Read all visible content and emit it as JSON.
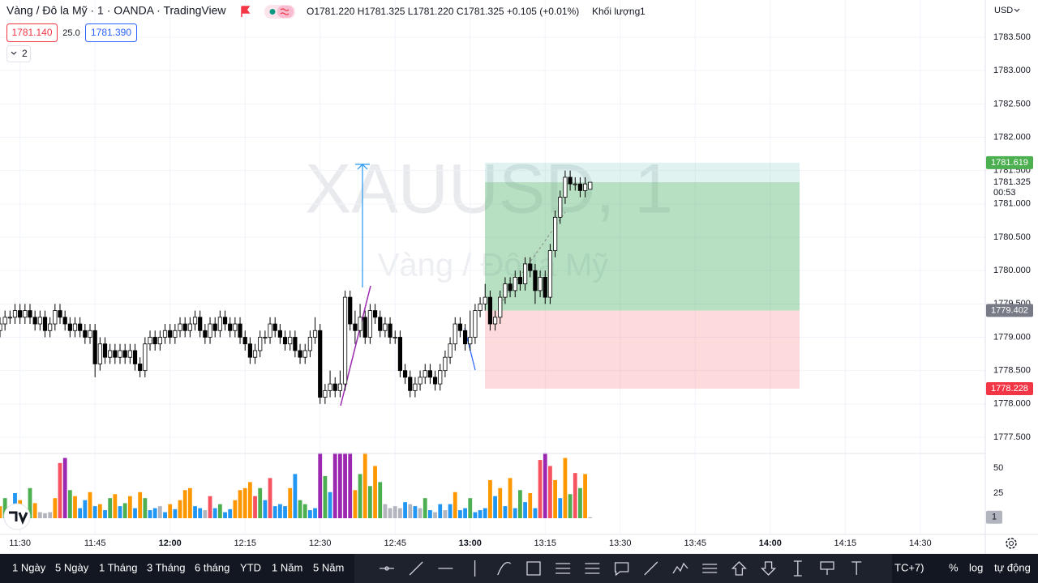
{
  "header": {
    "title": "Vàng / Đô la Mỹ · 1 · OANDA · TradingView",
    "ohlc_text": "O1781.220 H1781.325 L1781.220 C1781.325 +0.105 (+0.01%)",
    "volume_label": "Khối lượng",
    "sell": "1781.140",
    "spread": "25.0",
    "buy": "1781.390",
    "indicators": "2",
    "currency": "USD"
  },
  "chart_data": {
    "type": "candlestick",
    "watermark": "XAUUSD, 1",
    "watermark_sub": "Vàng / Đô la Mỹ",
    "x": [
      "11:26",
      "11:27",
      "11:28",
      "11:29",
      "11:30",
      "11:31",
      "11:32",
      "11:33",
      "11:34",
      "11:35",
      "11:36",
      "11:37",
      "11:38",
      "11:39",
      "11:40",
      "11:41",
      "11:42",
      "11:43",
      "11:44",
      "11:45",
      "11:46",
      "11:47",
      "11:48",
      "11:49",
      "11:50",
      "11:51",
      "11:52",
      "11:53",
      "11:54",
      "11:55",
      "11:56",
      "11:57",
      "11:58",
      "11:59",
      "12:00",
      "12:01",
      "12:02",
      "12:03",
      "12:04",
      "12:05",
      "12:06",
      "12:07",
      "12:08",
      "12:09",
      "12:10",
      "12:11",
      "12:12",
      "12:13",
      "12:14",
      "12:15",
      "12:16",
      "12:17",
      "12:18",
      "12:19",
      "12:20",
      "12:21",
      "12:22",
      "12:23",
      "12:24",
      "12:25",
      "12:26",
      "12:27",
      "12:28",
      "12:29",
      "12:30",
      "12:31",
      "12:32",
      "12:33",
      "12:34",
      "12:35",
      "12:36",
      "12:37",
      "12:38",
      "12:39",
      "12:40",
      "12:41",
      "12:42",
      "12:43",
      "12:44",
      "12:45",
      "12:46",
      "12:47",
      "12:48",
      "12:49",
      "12:50",
      "12:51",
      "12:52",
      "12:53",
      "12:54",
      "12:55",
      "12:56",
      "12:57",
      "12:58",
      "12:59",
      "13:00",
      "13:01",
      "13:02",
      "13:03",
      "13:04",
      "13:05",
      "13:06",
      "13:07",
      "13:08",
      "13:09",
      "13:10",
      "13:11",
      "13:12",
      "13:13",
      "13:14",
      "13:15",
      "13:16",
      "13:17",
      "13:18",
      "13:19",
      "13:20",
      "13:21",
      "13:22",
      "13:23",
      "13:24"
    ],
    "ohlc": [
      [
        1779.1,
        1779.3,
        1779.0,
        1779.2
      ],
      [
        1779.2,
        1779.4,
        1779.1,
        1779.3
      ],
      [
        1779.3,
        1779.4,
        1779.2,
        1779.3
      ],
      [
        1779.3,
        1779.5,
        1779.2,
        1779.4
      ],
      [
        1779.4,
        1779.5,
        1779.2,
        1779.3
      ],
      [
        1779.3,
        1779.5,
        1779.2,
        1779.4
      ],
      [
        1779.4,
        1779.5,
        1779.2,
        1779.3
      ],
      [
        1779.3,
        1779.4,
        1779.1,
        1779.2
      ],
      [
        1779.2,
        1779.4,
        1779.1,
        1779.3
      ],
      [
        1779.3,
        1779.4,
        1779.0,
        1779.1
      ],
      [
        1779.1,
        1779.3,
        1779.0,
        1779.2
      ],
      [
        1779.2,
        1779.5,
        1779.1,
        1779.4
      ],
      [
        1779.4,
        1779.5,
        1779.2,
        1779.3
      ],
      [
        1779.3,
        1779.4,
        1779.1,
        1779.2
      ],
      [
        1779.2,
        1779.3,
        1779.0,
        1779.1
      ],
      [
        1779.1,
        1779.3,
        1779.0,
        1779.2
      ],
      [
        1779.2,
        1779.3,
        1779.0,
        1779.1
      ],
      [
        1779.1,
        1779.2,
        1778.9,
        1779.0
      ],
      [
        1779.0,
        1779.2,
        1778.9,
        1779.1
      ],
      [
        1779.1,
        1779.2,
        1778.4,
        1778.6
      ],
      [
        1778.6,
        1779.0,
        1778.5,
        1778.9
      ],
      [
        1778.9,
        1779.0,
        1778.6,
        1778.7
      ],
      [
        1778.7,
        1778.9,
        1778.6,
        1778.8
      ],
      [
        1778.8,
        1778.9,
        1778.6,
        1778.7
      ],
      [
        1778.7,
        1778.9,
        1778.6,
        1778.8
      ],
      [
        1778.8,
        1778.9,
        1778.6,
        1778.7
      ],
      [
        1778.7,
        1778.9,
        1778.6,
        1778.8
      ],
      [
        1778.8,
        1778.9,
        1778.5,
        1778.6
      ],
      [
        1778.6,
        1778.7,
        1778.4,
        1778.5
      ],
      [
        1778.5,
        1779.0,
        1778.4,
        1778.9
      ],
      [
        1778.9,
        1779.1,
        1778.8,
        1779.0
      ],
      [
        1779.0,
        1779.1,
        1778.8,
        1778.9
      ],
      [
        1778.9,
        1779.1,
        1778.8,
        1779.0
      ],
      [
        1779.0,
        1779.2,
        1778.9,
        1779.1
      ],
      [
        1779.1,
        1779.2,
        1778.9,
        1779.0
      ],
      [
        1779.0,
        1779.2,
        1778.9,
        1779.1
      ],
      [
        1779.1,
        1779.3,
        1779.0,
        1779.2
      ],
      [
        1779.2,
        1779.3,
        1779.0,
        1779.1
      ],
      [
        1779.1,
        1779.3,
        1779.0,
        1779.2
      ],
      [
        1779.2,
        1779.4,
        1779.1,
        1779.3
      ],
      [
        1779.3,
        1779.4,
        1779.0,
        1779.1
      ],
      [
        1779.1,
        1779.2,
        1778.9,
        1779.0
      ],
      [
        1779.0,
        1779.3,
        1778.9,
        1779.2
      ],
      [
        1779.2,
        1779.3,
        1779.0,
        1779.1
      ],
      [
        1779.1,
        1779.4,
        1779.0,
        1779.3
      ],
      [
        1779.3,
        1779.4,
        1779.1,
        1779.2
      ],
      [
        1779.2,
        1779.3,
        1779.0,
        1779.1
      ],
      [
        1779.1,
        1779.3,
        1779.0,
        1779.2
      ],
      [
        1779.2,
        1779.3,
        1778.9,
        1779.0
      ],
      [
        1779.0,
        1779.1,
        1778.8,
        1778.9
      ],
      [
        1778.9,
        1779.0,
        1778.6,
        1778.7
      ],
      [
        1778.7,
        1778.9,
        1778.6,
        1778.8
      ],
      [
        1778.8,
        1779.1,
        1778.7,
        1779.0
      ],
      [
        1779.0,
        1779.1,
        1778.9,
        1779.0
      ],
      [
        1779.0,
        1779.3,
        1778.9,
        1779.2
      ],
      [
        1779.2,
        1779.3,
        1779.0,
        1779.1
      ],
      [
        1779.1,
        1779.2,
        1778.9,
        1779.0
      ],
      [
        1779.0,
        1779.1,
        1778.8,
        1778.9
      ],
      [
        1778.9,
        1779.1,
        1778.8,
        1779.0
      ],
      [
        1779.0,
        1779.1,
        1778.7,
        1778.8
      ],
      [
        1778.8,
        1778.9,
        1778.6,
        1778.7
      ],
      [
        1778.7,
        1778.9,
        1778.6,
        1778.8
      ],
      [
        1778.8,
        1779.1,
        1778.7,
        1779.0
      ],
      [
        1779.0,
        1779.3,
        1778.9,
        1779.1
      ],
      [
        1779.1,
        1779.2,
        1778.0,
        1778.1
      ],
      [
        1778.1,
        1778.3,
        1778.0,
        1778.2
      ],
      [
        1778.2,
        1778.5,
        1778.1,
        1778.3
      ],
      [
        1778.3,
        1778.4,
        1778.1,
        1778.2
      ],
      [
        1778.2,
        1778.5,
        1778.1,
        1778.3
      ],
      [
        1778.3,
        1779.7,
        1778.2,
        1779.6
      ],
      [
        1779.6,
        1779.7,
        1779.1,
        1779.2
      ],
      [
        1779.2,
        1779.4,
        1778.9,
        1779.1
      ],
      [
        1779.1,
        1779.5,
        1779.0,
        1779.3
      ],
      [
        1779.3,
        1779.4,
        1778.9,
        1779.0
      ],
      [
        1779.0,
        1779.5,
        1778.9,
        1779.4
      ],
      [
        1779.4,
        1779.5,
        1779.2,
        1779.3
      ],
      [
        1779.3,
        1779.4,
        1779.0,
        1779.1
      ],
      [
        1779.1,
        1779.3,
        1779.0,
        1779.2
      ],
      [
        1779.2,
        1779.3,
        1778.9,
        1779.0
      ],
      [
        1779.0,
        1779.1,
        1778.9,
        1779.0
      ],
      [
        1779.0,
        1779.1,
        1778.4,
        1778.5
      ],
      [
        1778.5,
        1778.6,
        1778.3,
        1778.4
      ],
      [
        1778.4,
        1778.5,
        1778.1,
        1778.2
      ],
      [
        1778.2,
        1778.4,
        1778.1,
        1778.3
      ],
      [
        1778.3,
        1778.5,
        1778.2,
        1778.4
      ],
      [
        1778.4,
        1778.6,
        1778.3,
        1778.5
      ],
      [
        1778.5,
        1778.6,
        1778.3,
        1778.4
      ],
      [
        1778.4,
        1778.5,
        1778.2,
        1778.3
      ],
      [
        1778.3,
        1778.6,
        1778.2,
        1778.5
      ],
      [
        1778.5,
        1778.8,
        1778.4,
        1778.7
      ],
      [
        1778.7,
        1779.0,
        1778.6,
        1778.9
      ],
      [
        1778.9,
        1779.3,
        1778.8,
        1779.2
      ],
      [
        1779.2,
        1779.3,
        1779.0,
        1779.1
      ],
      [
        1779.1,
        1779.2,
        1778.8,
        1778.9
      ],
      [
        1778.9,
        1779.4,
        1778.8,
        1779.0
      ],
      [
        1779.0,
        1779.5,
        1778.9,
        1779.4
      ],
      [
        1779.4,
        1779.6,
        1779.3,
        1779.5
      ],
      [
        1779.5,
        1779.8,
        1779.4,
        1779.6
      ],
      [
        1779.6,
        1779.7,
        1779.1,
        1779.2
      ],
      [
        1779.2,
        1779.4,
        1779.1,
        1779.3
      ],
      [
        1779.3,
        1779.7,
        1779.2,
        1779.6
      ],
      [
        1779.6,
        1779.9,
        1779.5,
        1779.8
      ],
      [
        1779.8,
        1779.9,
        1779.6,
        1779.7
      ],
      [
        1779.7,
        1780.0,
        1779.6,
        1779.9
      ],
      [
        1779.9,
        1780.0,
        1779.7,
        1779.8
      ],
      [
        1779.8,
        1780.2,
        1779.7,
        1780.1
      ],
      [
        1780.1,
        1780.2,
        1779.9,
        1780.0
      ],
      [
        1780.0,
        1780.1,
        1779.5,
        1779.7
      ],
      [
        1779.7,
        1780.0,
        1779.6,
        1779.9
      ],
      [
        1779.9,
        1780.0,
        1779.5,
        1779.6
      ],
      [
        1779.6,
        1780.4,
        1779.5,
        1780.3
      ],
      [
        1780.3,
        1780.9,
        1780.2,
        1780.8
      ],
      [
        1780.8,
        1781.2,
        1780.7,
        1781.1
      ],
      [
        1781.1,
        1781.5,
        1781.0,
        1781.4
      ],
      [
        1781.4,
        1781.5,
        1781.2,
        1781.3
      ],
      [
        1781.3,
        1781.4,
        1781.2,
        1781.3
      ],
      [
        1781.3,
        1781.4,
        1781.1,
        1781.2
      ],
      [
        1781.2,
        1781.4,
        1781.1,
        1781.3
      ],
      [
        1781.22,
        1781.325,
        1781.22,
        1781.325
      ]
    ],
    "volume": [
      12,
      20,
      8,
      25,
      18,
      10,
      30,
      15,
      6,
      5,
      6,
      20,
      55,
      60,
      28,
      22,
      10,
      18,
      26,
      12,
      14,
      8,
      20,
      24,
      12,
      15,
      22,
      10,
      26,
      20,
      8,
      10,
      12,
      6,
      14,
      9,
      18,
      28,
      30,
      12,
      10,
      8,
      22,
      10,
      14,
      6,
      9,
      18,
      28,
      30,
      36,
      22,
      30,
      18,
      40,
      12,
      14,
      12,
      30,
      44,
      18,
      14,
      8,
      10,
      65,
      42,
      26,
      65,
      65,
      65,
      65,
      28,
      44,
      65,
      32,
      52,
      36,
      14,
      10,
      12,
      10,
      16,
      14,
      12,
      10,
      20,
      8,
      6,
      14,
      8,
      14,
      26,
      8,
      10,
      20,
      6,
      8,
      10,
      38,
      22,
      30,
      12,
      40,
      10,
      28,
      16,
      25,
      10,
      58,
      65,
      52,
      38,
      20,
      60,
      24,
      45,
      30,
      44,
      1
    ],
    "volume_palette": {
      "o": "#ff9800",
      "g": "#4caf50",
      "b": "#2196f3",
      "p": "#9c27b0",
      "r": "#f7525f",
      "s": "#b2b5be"
    },
    "volume_colors": [
      "o",
      "g",
      "s",
      "b",
      "o",
      "g",
      "g",
      "o",
      "s",
      "s",
      "s",
      "o",
      "r",
      "p",
      "g",
      "o",
      "b",
      "b",
      "o",
      "b",
      "o",
      "b",
      "g",
      "o",
      "b",
      "g",
      "o",
      "b",
      "o",
      "g",
      "b",
      "b",
      "s",
      "b",
      "o",
      "b",
      "o",
      "o",
      "o",
      "b",
      "b",
      "s",
      "r",
      "b",
      "g",
      "b",
      "b",
      "o",
      "o",
      "o",
      "o",
      "r",
      "g",
      "b",
      "r",
      "b",
      "b",
      "b",
      "o",
      "b",
      "g",
      "g",
      "b",
      "b",
      "p",
      "g",
      "b",
      "p",
      "p",
      "p",
      "p",
      "o",
      "g",
      "o",
      "g",
      "o",
      "g",
      "s",
      "s",
      "s",
      "s",
      "b",
      "s",
      "b",
      "s",
      "g",
      "b",
      "s",
      "b",
      "s",
      "b",
      "o",
      "b",
      "b",
      "g",
      "b",
      "b",
      "b",
      "o",
      "b",
      "o",
      "b",
      "o",
      "b",
      "g",
      "b",
      "o",
      "b",
      "r",
      "p",
      "r",
      "o",
      "b",
      "o",
      "g",
      "r",
      "g",
      "o",
      "s"
    ],
    "up_color": "#ffffff",
    "down_color": "#000000",
    "wick_color": "#000000",
    "xlim": [
      "11:26",
      "14:43"
    ],
    "xticks": [
      "11:30",
      "11:45",
      "12:00",
      "12:15",
      "12:30",
      "12:45",
      "13:00",
      "13:15",
      "13:30",
      "13:45",
      "14:00",
      "14:15",
      "14:30"
    ],
    "ylim": [
      1777.257,
      1784.059
    ],
    "yticks": [
      {
        "value": 1783.5,
        "label": "1783.500"
      },
      {
        "value": 1783,
        "label": "1783.000"
      },
      {
        "value": 1782.5,
        "label": "1782.500"
      },
      {
        "value": 1782,
        "label": "1782.000"
      },
      {
        "value": 1781.5,
        "label": "1781.500"
      },
      {
        "value": 1781,
        "label": "1781.000"
      },
      {
        "value": 1780.5,
        "label": "1780.500"
      },
      {
        "value": 1780,
        "label": "1780.000"
      },
      {
        "value": 1779.5,
        "label": "1779.500"
      },
      {
        "value": 1779,
        "label": "1779.000"
      },
      {
        "value": 1778.5,
        "label": "1778.500"
      },
      {
        "value": 1778,
        "label": "1778.000"
      },
      {
        "value": 1777.5,
        "label": "1777.500"
      }
    ],
    "volume_lim": [
      0,
      64.5
    ],
    "volume_ticks": [
      50,
      25
    ],
    "grid": true,
    "last_price": 1781.325,
    "countdown": "00:53",
    "position": {
      "entry": 1779.402,
      "target": 1781.619,
      "stop": 1778.228
    }
  },
  "footer": {
    "ranges": [
      "1 Ngày",
      "5 Ngày",
      "1 Tháng",
      "3 Tháng",
      "6 tháng",
      "YTD",
      "1 Năm",
      "5 Năm"
    ],
    "timezone": "TC+7)",
    "percent": "%",
    "log": "log",
    "auto": "tự động"
  }
}
